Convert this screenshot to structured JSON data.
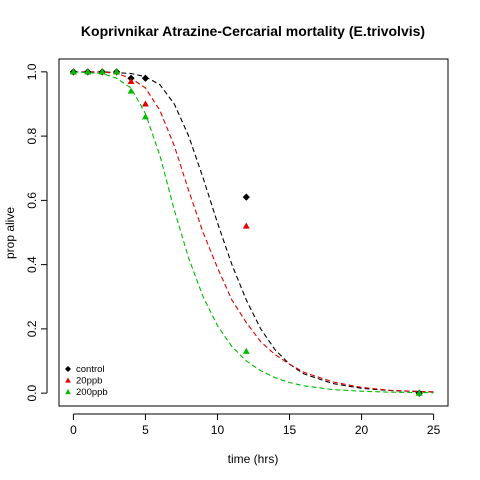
{
  "chart_data": {
    "type": "scatter",
    "title": "Koprivnikar Atrazine-Cercarial mortality (E.trivolvis)",
    "xlabel": "time (hrs)",
    "ylabel": "prop alive",
    "xlim": [
      -1,
      26
    ],
    "ylim": [
      -0.04,
      1.04
    ],
    "xticks": [
      0,
      5,
      10,
      15,
      20,
      25
    ],
    "yticks": [
      0.0,
      0.2,
      0.4,
      0.6,
      0.8,
      1.0
    ],
    "xtick_labels": [
      "0",
      "5",
      "10",
      "15",
      "20",
      "25"
    ],
    "ytick_labels": [
      "0.0",
      "0.2",
      "0.4",
      "0.6",
      "0.8",
      "1.0"
    ],
    "legend_position": "bottom-left",
    "series": [
      {
        "name": "control",
        "color": "#000000",
        "marker": "diamond",
        "points": [
          [
            0,
            1.0
          ],
          [
            1,
            1.0
          ],
          [
            2,
            1.0
          ],
          [
            3,
            1.0
          ],
          [
            4,
            0.98
          ],
          [
            5,
            0.98
          ],
          [
            12,
            0.61
          ],
          [
            24,
            0.0
          ]
        ],
        "fit_curve": [
          [
            0,
            1.0
          ],
          [
            2,
            1.0
          ],
          [
            4,
            0.995
          ],
          [
            5,
            0.985
          ],
          [
            6,
            0.96
          ],
          [
            7,
            0.9
          ],
          [
            8,
            0.8
          ],
          [
            9,
            0.67
          ],
          [
            10,
            0.53
          ],
          [
            11,
            0.4
          ],
          [
            12,
            0.29
          ],
          [
            13,
            0.2
          ],
          [
            14,
            0.135
          ],
          [
            15,
            0.09
          ],
          [
            16,
            0.06
          ],
          [
            18,
            0.03
          ],
          [
            20,
            0.015
          ],
          [
            22,
            0.008
          ],
          [
            24,
            0.005
          ],
          [
            25,
            0.004
          ]
        ]
      },
      {
        "name": "20ppb",
        "color": "#e00000",
        "marker": "triangle",
        "points": [
          [
            0,
            1.0
          ],
          [
            1,
            1.0
          ],
          [
            2,
            1.0
          ],
          [
            3,
            1.0
          ],
          [
            4,
            0.97
          ],
          [
            5,
            0.9
          ],
          [
            12,
            0.52
          ],
          [
            24,
            0.0
          ]
        ],
        "fit_curve": [
          [
            0,
            1.0
          ],
          [
            2,
            1.0
          ],
          [
            3,
            0.995
          ],
          [
            4,
            0.98
          ],
          [
            5,
            0.95
          ],
          [
            6,
            0.88
          ],
          [
            7,
            0.77
          ],
          [
            8,
            0.63
          ],
          [
            9,
            0.5
          ],
          [
            10,
            0.39
          ],
          [
            11,
            0.29
          ],
          [
            12,
            0.22
          ],
          [
            13,
            0.16
          ],
          [
            14,
            0.12
          ],
          [
            15,
            0.09
          ],
          [
            16,
            0.065
          ],
          [
            18,
            0.035
          ],
          [
            20,
            0.018
          ],
          [
            22,
            0.009
          ],
          [
            24,
            0.005
          ],
          [
            25,
            0.004
          ]
        ]
      },
      {
        "name": "200ppb",
        "color": "#00bb00",
        "marker": "triangle",
        "points": [
          [
            0,
            1.0
          ],
          [
            1,
            1.0
          ],
          [
            2,
            1.0
          ],
          [
            3,
            1.0
          ],
          [
            4,
            0.94
          ],
          [
            5,
            0.86
          ],
          [
            12,
            0.13
          ],
          [
            24,
            0.0
          ]
        ],
        "fit_curve": [
          [
            0,
            1.0
          ],
          [
            2,
            0.995
          ],
          [
            3,
            0.98
          ],
          [
            4,
            0.95
          ],
          [
            5,
            0.87
          ],
          [
            6,
            0.74
          ],
          [
            7,
            0.57
          ],
          [
            8,
            0.42
          ],
          [
            9,
            0.3
          ],
          [
            10,
            0.21
          ],
          [
            11,
            0.145
          ],
          [
            12,
            0.1
          ],
          [
            13,
            0.07
          ],
          [
            14,
            0.048
          ],
          [
            15,
            0.033
          ],
          [
            16,
            0.023
          ],
          [
            18,
            0.011
          ],
          [
            20,
            0.006
          ],
          [
            22,
            0.003
          ],
          [
            24,
            0.002
          ],
          [
            25,
            0.001
          ]
        ]
      }
    ]
  }
}
